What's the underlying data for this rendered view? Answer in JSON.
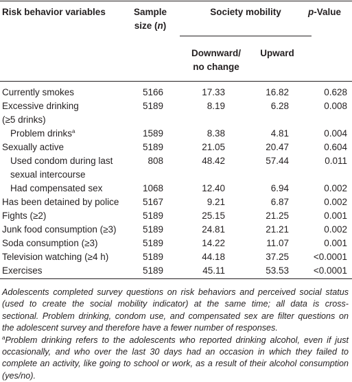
{
  "table": {
    "header": {
      "variable": [
        "Risk behavior variables"
      ],
      "sample": [
        "Sample",
        [
          "size (",
          {
            "text": "n",
            "italic": true
          },
          ")"
        ]
      ],
      "group": [
        "Society mobility"
      ],
      "downward": [
        "Downward/",
        "no change"
      ],
      "upward": [
        "Upward"
      ],
      "p": [
        [
          {
            "text": "p",
            "italic": true
          },
          "-Value"
        ]
      ]
    },
    "rows": [
      {
        "label": [
          "Currently smokes"
        ],
        "indent": false,
        "n": "5166",
        "down": "17.33",
        "up": "16.82",
        "p": "0.628"
      },
      {
        "label": [
          "Excessive drinking",
          "(≥5 drinks)"
        ],
        "indent": false,
        "n": "5189",
        "down": "8.19",
        "up": "6.28",
        "p": "0.008"
      },
      {
        "label": [
          [
            "Problem drinks",
            {
              "text": "a",
              "sup": true
            }
          ]
        ],
        "indent": true,
        "n": "1589",
        "down": "8.38",
        "up": "4.81",
        "p": "0.004"
      },
      {
        "label": [
          "Sexually active"
        ],
        "indent": false,
        "n": "5189",
        "down": "21.05",
        "up": "20.47",
        "p": "0.604"
      },
      {
        "label": [
          "Used condom during last",
          "sexual intercourse"
        ],
        "indent": true,
        "n": "808",
        "down": "48.42",
        "up": "57.44",
        "p": "0.011"
      },
      {
        "label": [
          "Had compensated sex"
        ],
        "indent": true,
        "n": "1068",
        "down": "12.40",
        "up": "6.94",
        "p": "0.002"
      },
      {
        "label": [
          "Has been detained by police"
        ],
        "indent": false,
        "n": "5167",
        "down": "9.21",
        "up": "6.87",
        "p": "0.002"
      },
      {
        "label": [
          "Fights (≥2)"
        ],
        "indent": false,
        "n": "5189",
        "down": "25.15",
        "up": "21.25",
        "p": "0.001"
      },
      {
        "label": [
          "Junk food consumption (≥3)"
        ],
        "indent": false,
        "n": "5189",
        "down": "24.81",
        "up": "21.21",
        "p": "0.002"
      },
      {
        "label": [
          "Soda consumption (≥3)"
        ],
        "indent": false,
        "n": "5189",
        "down": "14.22",
        "up": "11.07",
        "p": "0.001"
      },
      {
        "label": [
          "Television watching (≥4 h)"
        ],
        "indent": false,
        "n": "5189",
        "down": "44.18",
        "up": "37.25",
        "p": "<0.0001"
      },
      {
        "label": [
          "Exercises"
        ],
        "indent": false,
        "n": "5189",
        "down": "45.11",
        "up": "53.53",
        "p": "<0.0001"
      }
    ]
  },
  "note": [
    "Adolescents completed survey questions on risk behaviors and perceived social status",
    "(used to create the social mobility indicator) at the same time; all data is cross-",
    "sectional. Problem drinking, condom use, and compensated sex are filter questions on",
    "the adolescent survey and therefore have a fewer number of responses."
  ],
  "footnote": [
    [
      {
        "text": "a",
        "sup": true
      },
      "Problem drinking refers to the adolescents who reported drinking alcohol, even if just"
    ],
    "occasionally, and who over the last 30 days had an occasion in which they failed to",
    "complete an activity, like going to school or work, as a result of their alcohol consumption",
    "(yes/no)."
  ]
}
